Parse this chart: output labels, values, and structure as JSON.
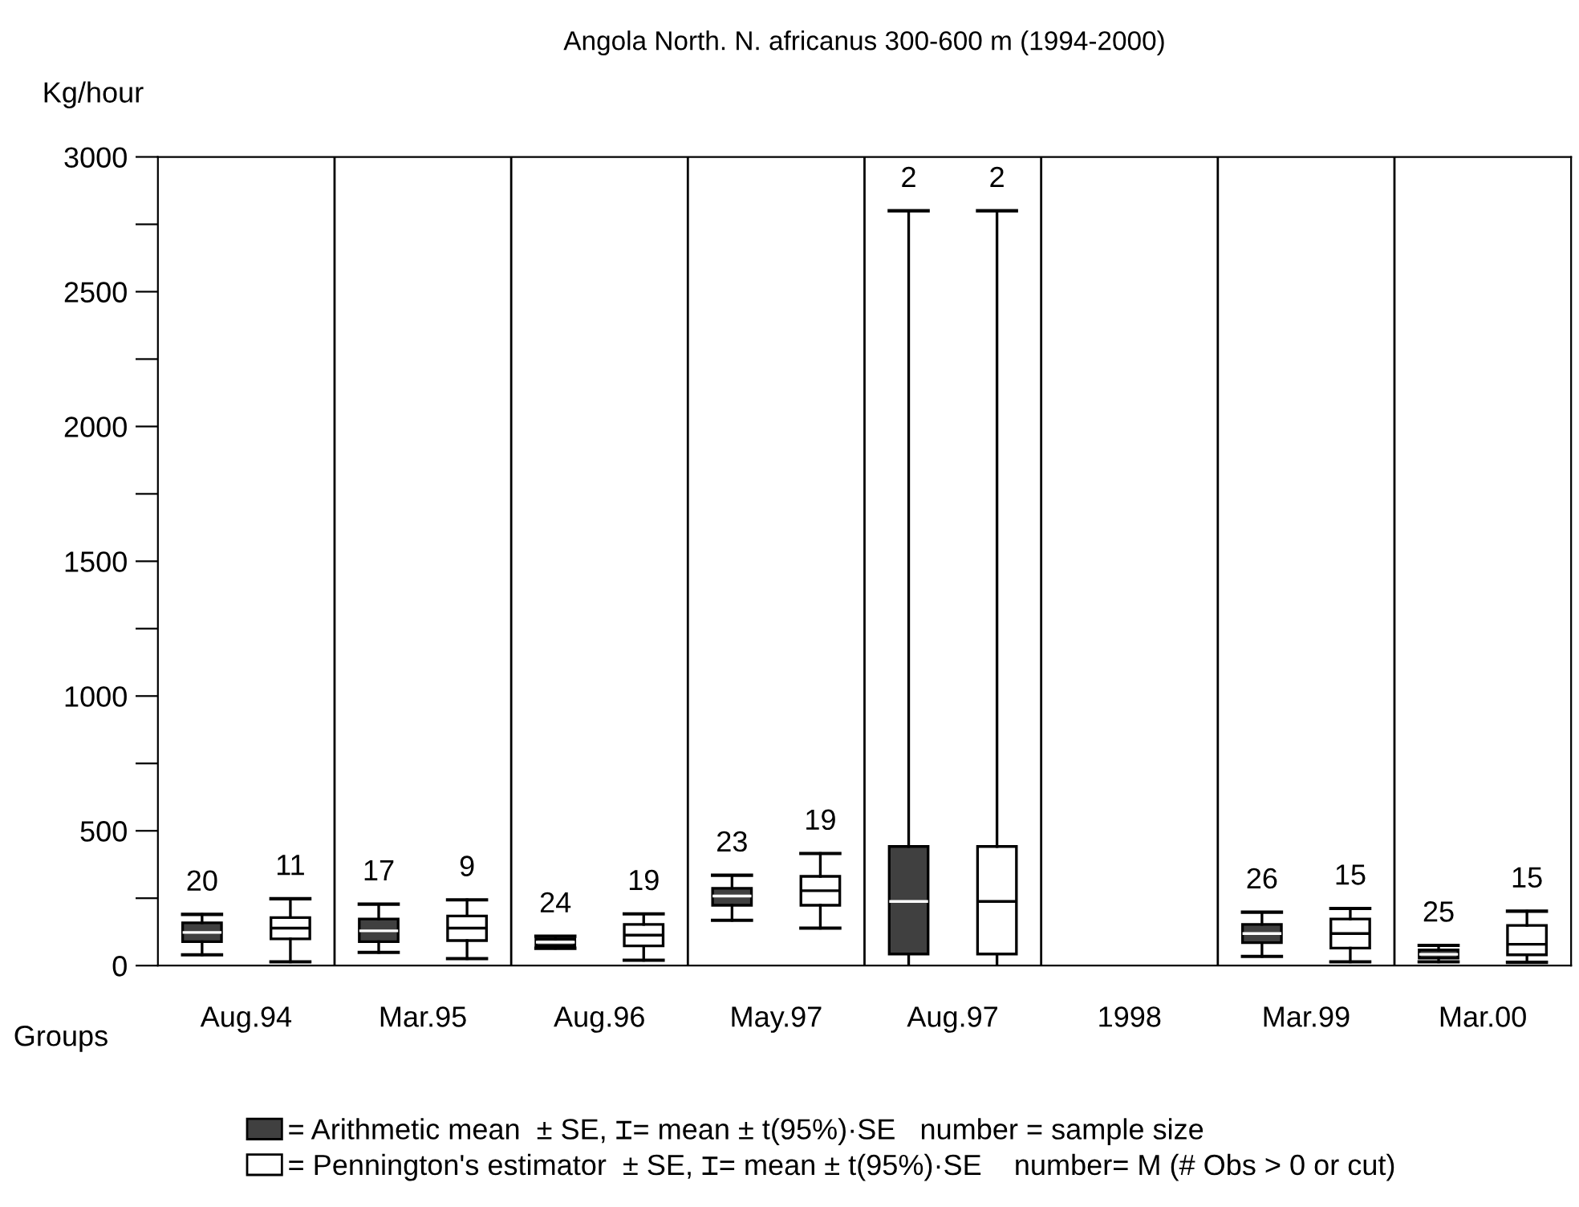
{
  "chart_data": {
    "type": "box",
    "title": "Angola North. N. africanus 300-600 m (1994-2000)",
    "ylabel": "Kg/hour",
    "xlabel": "Groups",
    "categories": [
      "Aug.94",
      "Mar.95",
      "Aug.96",
      "May.97",
      "Aug.97",
      "1998",
      "Mar.99",
      "Mar.00"
    ],
    "ylim": [
      0,
      3000
    ],
    "yticks": [
      0,
      {
        "value": 250,
        "label": null
      },
      500,
      {
        "value": 750,
        "label": null
      },
      1000,
      {
        "value": 1250,
        "label": null
      },
      1500,
      {
        "value": 1750,
        "label": null
      },
      2000,
      {
        "value": 2250,
        "label": null
      },
      2500,
      {
        "value": 2750,
        "label": null
      },
      3000
    ],
    "grid": "x",
    "legend": "bottom",
    "series": [
      {
        "name": "= Arithmetic mean  ± SE, ⌶= mean ± t(95%)·SE   number = sample size",
        "color": "#404040",
        "value_labels": [
          "20",
          "17",
          "24",
          "23",
          "2",
          null,
          "26",
          "25"
        ],
        "boxes": [
          {
            "low": 40,
            "q1": 89,
            "median": 123,
            "q3": 159,
            "high": 190
          },
          {
            "low": 49,
            "q1": 89,
            "median": 129,
            "q3": 173,
            "high": 228
          },
          {
            "low": 64,
            "q1": 73,
            "median": 87,
            "q3": 99,
            "high": 109
          },
          {
            "low": 168,
            "q1": 224,
            "median": 258,
            "q3": 287,
            "high": 335
          },
          {
            "low": null,
            "q1": 43,
            "median": 238,
            "q3": 442,
            "high": 2800
          },
          null,
          {
            "low": 34,
            "q1": 85,
            "median": 119,
            "q3": 153,
            "high": 198
          },
          {
            "low": 14,
            "q1": 28,
            "median": 42,
            "q3": 58,
            "high": 75
          }
        ]
      },
      {
        "name": "= Pennington's estimator  ± SE, ⌶= mean ± t(95%)·SE    number= M (# Obs > 0 or cut)",
        "color": "#ffffff",
        "value_labels": [
          "11",
          "9",
          "19",
          "19",
          "2",
          null,
          "15",
          "15"
        ],
        "boxes": [
          {
            "low": 14,
            "q1": 99,
            "median": 139,
            "q3": 178,
            "high": 248
          },
          {
            "low": 26,
            "q1": 93,
            "median": 139,
            "q3": 184,
            "high": 244
          },
          {
            "low": 20,
            "q1": 73,
            "median": 113,
            "q3": 153,
            "high": 192
          },
          {
            "low": 139,
            "q1": 224,
            "median": 278,
            "q3": 331,
            "high": 416
          },
          {
            "low": null,
            "q1": 43,
            "median": 238,
            "q3": 442,
            "high": 2800
          },
          null,
          {
            "low": 14,
            "q1": 65,
            "median": 119,
            "q3": 173,
            "high": 212
          },
          {
            "low": 12,
            "q1": 40,
            "median": 79,
            "q3": 149,
            "high": 202
          }
        ]
      }
    ]
  }
}
